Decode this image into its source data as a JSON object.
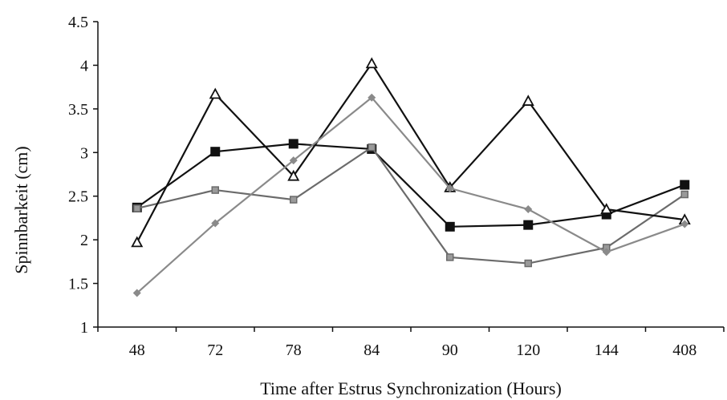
{
  "chart_data": {
    "type": "line",
    "title": "",
    "xlabel": "Time after Estrus Synchronization (Hours)",
    "ylabel": "Spinnbarkeit (cm)",
    "categories": [
      "48",
      "72",
      "78",
      "84",
      "90",
      "120",
      "144",
      "408"
    ],
    "yticks": [
      "1",
      "1.5",
      "2",
      "2.5",
      "3",
      "3.5",
      "4",
      "4.5"
    ],
    "ylim": [
      1,
      4.5
    ],
    "grid": false,
    "legend": "none",
    "series": [
      {
        "marker": "square-filled",
        "color": "#111111",
        "values": [
          2.37,
          3.01,
          3.1,
          3.04,
          2.15,
          2.17,
          2.29,
          2.63
        ]
      },
      {
        "marker": "square-small",
        "color": "#6b6b6b",
        "values": [
          2.36,
          2.57,
          2.46,
          3.06,
          1.8,
          1.73,
          1.91,
          2.52
        ]
      },
      {
        "marker": "triangle-open",
        "color": "#111111",
        "values": [
          1.97,
          3.67,
          2.73,
          4.02,
          2.6,
          3.59,
          2.35,
          2.23
        ]
      },
      {
        "marker": "diamond",
        "color": "#8a8a8a",
        "values": [
          1.39,
          2.19,
          2.91,
          3.63,
          2.59,
          2.35,
          1.86,
          2.18
        ]
      }
    ]
  }
}
